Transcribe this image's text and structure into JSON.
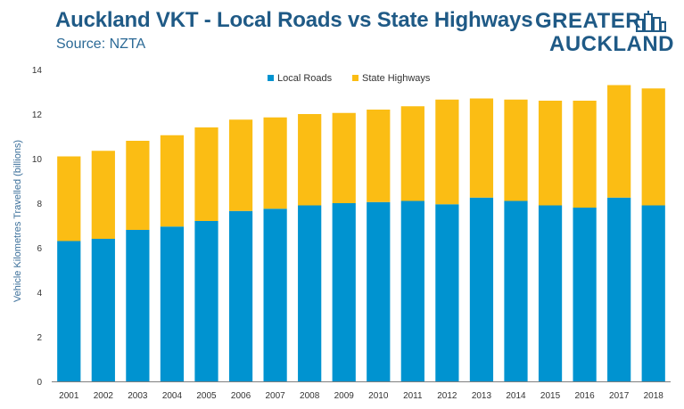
{
  "header": {
    "title": "Auckland VKT - Local Roads vs State Highways",
    "subtitle": "Source: NZTA"
  },
  "logo": {
    "line1": "GREATER",
    "line2": "AUCKLAND"
  },
  "colors": {
    "local": "#0093d0",
    "state": "#fbbd14",
    "title": "#1f5a86",
    "axis": "#7f7f7f"
  },
  "chart_data": {
    "type": "bar",
    "stacked": true,
    "ylabel": "Vehicle Kilometres Travelled (billions)",
    "ylim": [
      0,
      14
    ],
    "yticks": [
      0,
      2,
      4,
      6,
      8,
      10,
      12,
      14
    ],
    "grid": false,
    "legend_position": "top-center",
    "categories": [
      "2001",
      "2002",
      "2003",
      "2004",
      "2005",
      "2006",
      "2007",
      "2008",
      "2009",
      "2010",
      "2011",
      "2012",
      "2013",
      "2014",
      "2015",
      "2016",
      "2017",
      "2018"
    ],
    "series": [
      {
        "name": "Local Roads",
        "color": "#0093d0",
        "values": [
          6.3,
          6.4,
          6.8,
          6.95,
          7.2,
          7.65,
          7.75,
          7.9,
          8.0,
          8.05,
          8.1,
          7.95,
          8.25,
          8.1,
          7.9,
          7.8,
          8.25,
          7.9
        ]
      },
      {
        "name": "State Highways",
        "color": "#fbbd14",
        "values": [
          3.8,
          3.95,
          4.0,
          4.1,
          4.2,
          4.1,
          4.1,
          4.1,
          4.05,
          4.15,
          4.25,
          4.7,
          4.45,
          4.55,
          4.7,
          4.8,
          5.05,
          5.25
        ]
      }
    ]
  }
}
